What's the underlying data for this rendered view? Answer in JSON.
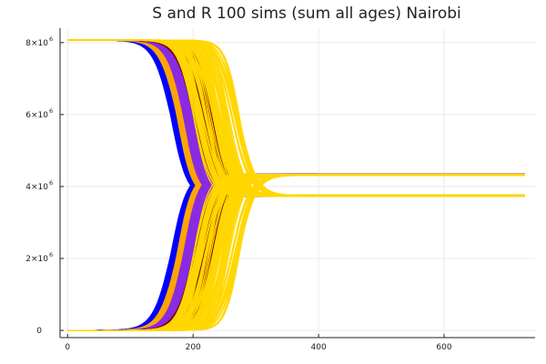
{
  "chart_data": {
    "type": "line",
    "title": "S and R 100 sims (sum all ages) Nairobi",
    "xlabel": "",
    "ylabel": "",
    "xlim": [
      -12,
      745
    ],
    "ylim": [
      -200000,
      8400000
    ],
    "grid": true,
    "legend": "none",
    "x_ticks": [
      {
        "value": 0,
        "label": "0"
      },
      {
        "value": 200,
        "label": "200"
      },
      {
        "value": 400,
        "label": "400"
      },
      {
        "value": 600,
        "label": "600"
      }
    ],
    "y_ticks": [
      {
        "value": 0,
        "mantissa": "0",
        "exponent": ""
      },
      {
        "value": 2000000,
        "mantissa": "2×10",
        "exponent": "6"
      },
      {
        "value": 4000000,
        "mantissa": "4×10",
        "exponent": "6"
      },
      {
        "value": 6000000,
        "mantissa": "6×10",
        "exponent": "6"
      },
      {
        "value": 8000000,
        "mantissa": "8×10",
        "exponent": "6"
      }
    ],
    "x_max": 730,
    "simulations_per_color": 100,
    "series": [
      {
        "color": "#0000ff",
        "midpoint_range": [
          165,
          178
        ],
        "final_S": [
          3730000,
          3760000
        ],
        "final_R": [
          4310000,
          4340000
        ]
      },
      {
        "color": "#ffa500",
        "midpoint_range": [
          175,
          195
        ],
        "final_S": [
          3730000,
          3760000
        ],
        "final_R": [
          4310000,
          4340000
        ]
      },
      {
        "color": "#8a2be2",
        "midpoint_range": [
          185,
          215
        ],
        "final_S": [
          3730000,
          3760000
        ],
        "final_R": [
          4310000,
          4340000
        ]
      },
      {
        "color": "#800000",
        "midpoint_range": [
          200,
          240
        ],
        "final_S": [
          3730000,
          3760000
        ],
        "final_R": [
          4310000,
          4340000
        ]
      },
      {
        "color": "#ffd700",
        "midpoint_range": [
          200,
          275
        ],
        "final_S": [
          3730000,
          3760000
        ],
        "final_R": [
          4310000,
          4340000
        ]
      }
    ],
    "initial_S": 8070000,
    "initial_R": 0
  }
}
